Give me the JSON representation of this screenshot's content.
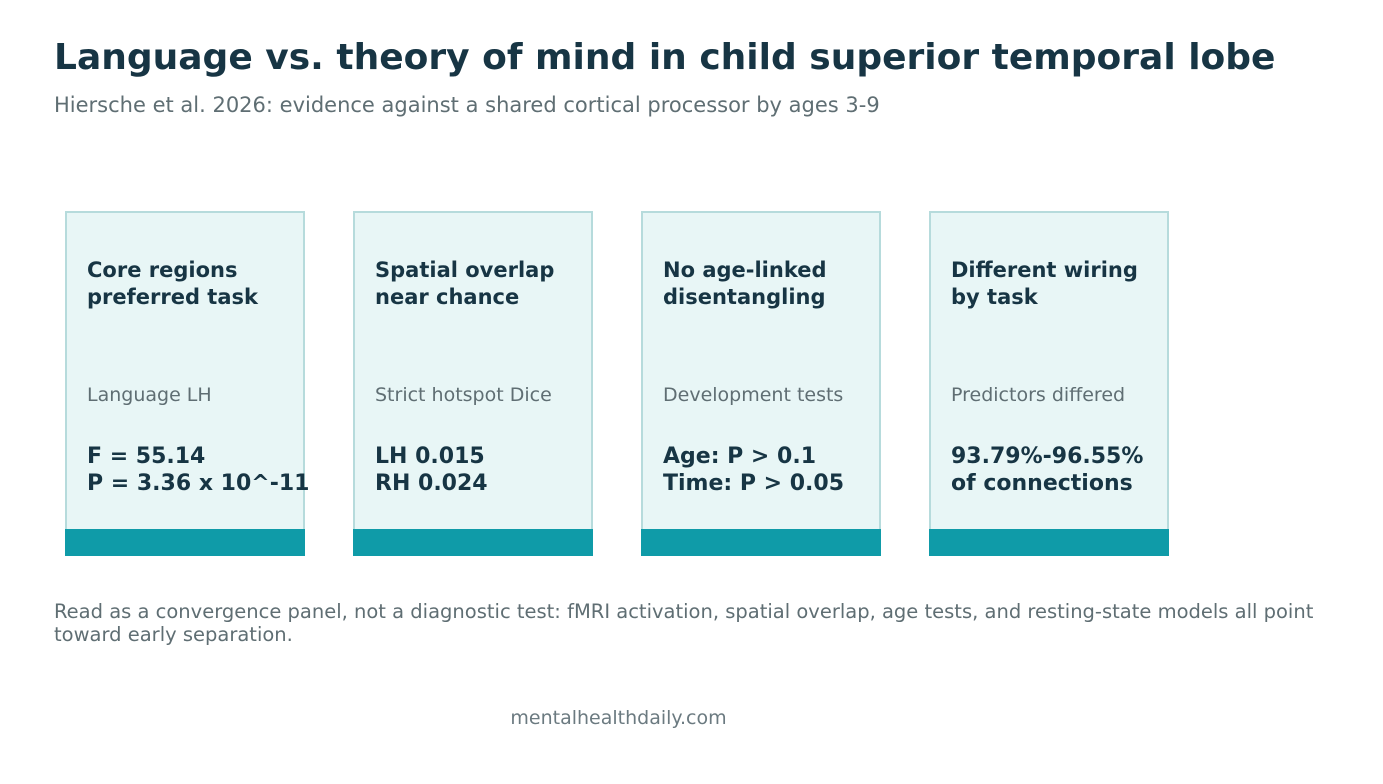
{
  "header": {
    "title": "Language vs. theory of mind in child superior temporal lobe",
    "subtitle": "Hiersche et al. 2026: evidence against a shared cortical processor by ages 3-9"
  },
  "cards": [
    {
      "heading": "Core regions\npreferred task",
      "label": "Language LH",
      "value": "F = 55.14\nP = 3.36 x 10^-11"
    },
    {
      "heading": "Spatial overlap\nnear chance",
      "label": "Strict hotspot Dice",
      "value": "LH 0.015\nRH 0.024"
    },
    {
      "heading": "No age-linked\ndisentangling",
      "label": "Development tests",
      "value": "Age: P > 0.1\nTime: P > 0.05"
    },
    {
      "heading": "Different wiring\nby task",
      "label": "Predictors differed",
      "value": "93.79%-96.55%\nof connections"
    }
  ],
  "footer": {
    "note": "Read as a convergence panel, not a diagnostic test: fMRI activation, spatial overlap, age tests, and resting-state models all point toward early separation.",
    "source": "mentalhealthdaily.com"
  },
  "colors": {
    "title": "#173544",
    "muted_text": "#5f6e73",
    "card_background": "#e8f6f6",
    "card_border": "#b6dbdc",
    "accent_bar": "#0f9ba8"
  }
}
